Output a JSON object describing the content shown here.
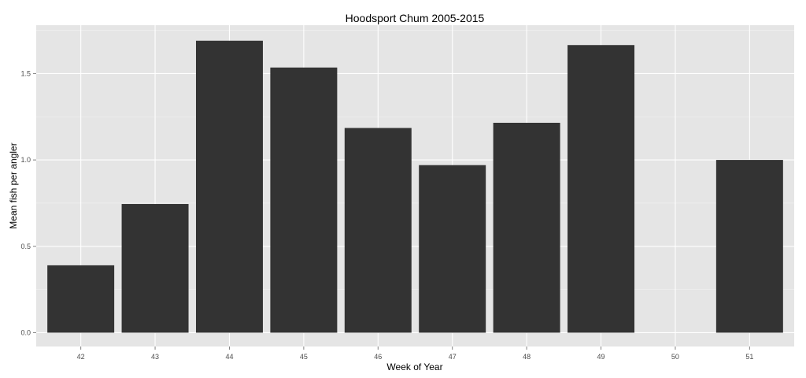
{
  "chart_data": {
    "type": "bar",
    "title": "Hoodsport Chum 2005-2015",
    "xlabel": "Week of Year",
    "ylabel": "Mean fish per angler",
    "categories": [
      "42",
      "43",
      "44",
      "45",
      "46",
      "47",
      "48",
      "49",
      "50",
      "51"
    ],
    "values": [
      0.39,
      0.745,
      1.69,
      1.535,
      1.185,
      0.97,
      1.215,
      1.665,
      null,
      1.0
    ],
    "yticks": [
      "0.0",
      "0.5",
      "1.0",
      "1.5"
    ],
    "ytick_values": [
      0,
      0.5,
      1.0,
      1.5
    ],
    "ylim": [
      -0.08,
      1.78
    ],
    "grid": true,
    "colors": {
      "panel": "#e5e5e5",
      "grid_major": "#ffffff",
      "grid_minor": "#f2f2f2",
      "bar": "#333333"
    }
  }
}
